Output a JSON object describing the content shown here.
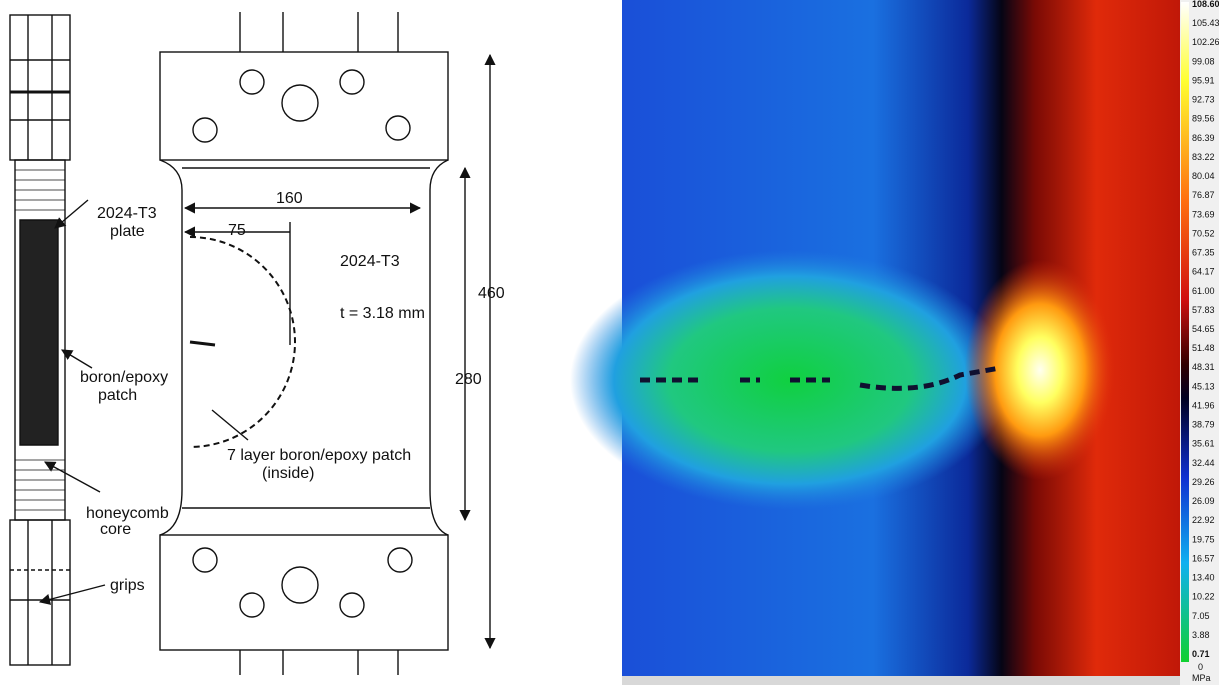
{
  "diagram": {
    "side_view": {
      "plate_label": [
        "2024-T3",
        "plate"
      ],
      "patch_label": [
        "boron/epoxy",
        "patch"
      ],
      "core_label": [
        "honeycomb",
        "core"
      ],
      "grips_label": "grips"
    },
    "front_view": {
      "width": "160",
      "crack": "75",
      "material": "2024-T3",
      "thickness": "t = 3.18 mm",
      "total_length": "460",
      "gauge_length": "280",
      "patch_label": [
        "7 layer boron/epoxy patch",
        "(inside)"
      ]
    }
  },
  "stress_map": {
    "colorbar_ticks": [
      "108.60",
      "105.43",
      "102.26",
      "99.08",
      "95.91",
      "92.73",
      "89.56",
      "86.39",
      "83.22",
      "80.04",
      "76.87",
      "73.69",
      "70.52",
      "67.35",
      "64.17",
      "61.00",
      "57.83",
      "54.65",
      "51.48",
      "48.31",
      "45.13",
      "41.96",
      "38.79",
      "35.61",
      "32.44",
      "29.26",
      "26.09",
      "22.92",
      "19.75",
      "16.57",
      "13.40",
      "10.22",
      "7.05",
      "3.88",
      "0.71"
    ],
    "zero_label": "0",
    "unit": "MPa"
  }
}
